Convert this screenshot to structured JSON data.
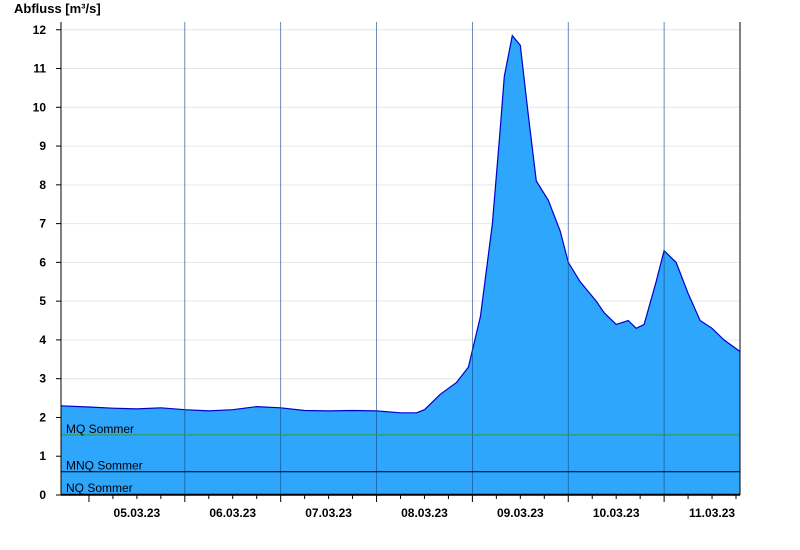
{
  "chart_data": {
    "type": "area",
    "ylabel": "Abfluss [m³/s]",
    "xlabel": "",
    "title": "",
    "ylim": [
      0,
      12.2
    ],
    "xlim": [
      "2023-03-04T17:00",
      "2023-03-11T19:00"
    ],
    "yticks": [
      0,
      1,
      2,
      3,
      4,
      5,
      6,
      7,
      8,
      9,
      10,
      11,
      12
    ],
    "xticks": [
      {
        "label": "05.03.23",
        "x": "2023-03-05T12:00"
      },
      {
        "label": "06.03.23",
        "x": "2023-03-06T12:00"
      },
      {
        "label": "07.03.23",
        "x": "2023-03-07T12:00"
      },
      {
        "label": "08.03.23",
        "x": "2023-03-08T12:00"
      },
      {
        "label": "09.03.23",
        "x": "2023-03-09T12:00"
      },
      {
        "label": "10.03.23",
        "x": "2023-03-10T12:00"
      },
      {
        "label": "11.03.23",
        "x": "2023-03-11T12:00"
      }
    ],
    "day_lines": [
      "2023-03-06T00:00",
      "2023-03-07T00:00",
      "2023-03-08T00:00",
      "2023-03-09T00:00",
      "2023-03-10T00:00",
      "2023-03-11T00:00"
    ],
    "grid": true,
    "fill_color": "#2ea6fb",
    "line_color": "#0000cc",
    "series": [
      {
        "x": [
          "2023-03-04T17:00",
          "2023-03-05T00:00",
          "2023-03-05T06:00",
          "2023-03-05T12:00",
          "2023-03-05T18:00",
          "2023-03-06T00:00",
          "2023-03-06T06:00",
          "2023-03-06T12:00",
          "2023-03-06T18:00",
          "2023-03-07T00:00",
          "2023-03-07T06:00",
          "2023-03-07T12:00",
          "2023-03-07T18:00",
          "2023-03-08T00:00",
          "2023-03-08T06:00",
          "2023-03-08T10:00",
          "2023-03-08T12:00",
          "2023-03-08T16:00",
          "2023-03-08T20:00",
          "2023-03-08T23:00",
          "2023-03-09T02:00",
          "2023-03-09T05:00",
          "2023-03-09T07:00",
          "2023-03-09T08:00",
          "2023-03-09T10:00",
          "2023-03-09T12:00",
          "2023-03-09T14:00",
          "2023-03-09T16:00",
          "2023-03-09T19:00",
          "2023-03-09T22:00",
          "2023-03-10T00:00",
          "2023-03-10T03:00",
          "2023-03-10T07:00",
          "2023-03-10T09:00",
          "2023-03-10T12:00",
          "2023-03-10T15:00",
          "2023-03-10T17:00",
          "2023-03-10T19:00",
          "2023-03-10T22:00",
          "2023-03-11T00:00",
          "2023-03-11T03:00",
          "2023-03-11T06:00",
          "2023-03-11T09:00",
          "2023-03-11T12:00",
          "2023-03-11T15:00",
          "2023-03-11T19:00"
        ],
        "values": [
          2.3,
          2.27,
          2.24,
          2.22,
          2.25,
          2.2,
          2.17,
          2.2,
          2.28,
          2.25,
          2.18,
          2.17,
          2.18,
          2.17,
          2.12,
          2.12,
          2.2,
          2.6,
          2.9,
          3.3,
          4.6,
          7.0,
          9.5,
          10.8,
          11.85,
          11.6,
          9.8,
          8.1,
          7.6,
          6.8,
          6.0,
          5.5,
          5.0,
          4.7,
          4.4,
          4.5,
          4.3,
          4.4,
          5.5,
          6.3,
          6.0,
          5.2,
          4.5,
          4.3,
          4.0,
          3.7
        ]
      }
    ],
    "reference_lines": [
      {
        "name": "MQ Sommer",
        "value": 1.55,
        "color": "#2e9a3c"
      },
      {
        "name": "MNQ Sommer",
        "value": 0.6,
        "color": "#000000"
      },
      {
        "name": "NQ Sommer",
        "value": 0.02,
        "color": "#000000"
      }
    ]
  }
}
